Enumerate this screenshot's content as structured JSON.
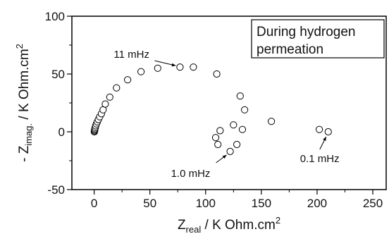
{
  "chart_data": {
    "type": "scatter",
    "xlabel": {
      "prefix": "Z",
      "sub": "real",
      "suffix": " / K Ohm.cm",
      "sup": "2"
    },
    "ylabel": {
      "prefix": "- Z",
      "sub": "imag.",
      "suffix": " / K Ohm.cm",
      "sup": "2"
    },
    "xlim": [
      -20,
      262
    ],
    "ylim": [
      -50,
      100
    ],
    "xticks": [
      0,
      50,
      100,
      150,
      200,
      250
    ],
    "yticks": [
      -50,
      0,
      50,
      100
    ],
    "legend": {
      "lines": [
        "During hydrogen",
        "permeation"
      ],
      "placement": "top-right"
    },
    "annotations": [
      {
        "text": "11 mHz",
        "x": 77,
        "y": 56
      },
      {
        "text": "1.0 mHz",
        "x": 122,
        "y": -17
      },
      {
        "text": "0.1 mHz",
        "x": 210,
        "y": 0
      }
    ],
    "points": [
      [
        0.2,
        0.0
      ],
      [
        0.3,
        0.8
      ],
      [
        0.5,
        1.6
      ],
      [
        0.7,
        2.6
      ],
      [
        1.0,
        3.8
      ],
      [
        1.4,
        5.2
      ],
      [
        2.0,
        6.8
      ],
      [
        2.8,
        8.6
      ],
      [
        3.8,
        10.6
      ],
      [
        5.0,
        13.0
      ],
      [
        6.5,
        15.6
      ],
      [
        8.0,
        19.0
      ],
      [
        10.0,
        24.0
      ],
      [
        14.0,
        30.0
      ],
      [
        20.0,
        38.0
      ],
      [
        30.0,
        45.0
      ],
      [
        42.0,
        52.0
      ],
      [
        57.0,
        55.0
      ],
      [
        77.0,
        56.0
      ],
      [
        89.0,
        56.0
      ],
      [
        110.0,
        50.0
      ],
      [
        131.0,
        31.0
      ],
      [
        135.0,
        19.0
      ],
      [
        159.0,
        9.0
      ],
      [
        125.0,
        6.0
      ],
      [
        113.0,
        1.0
      ],
      [
        133.0,
        2.0
      ],
      [
        109.0,
        -5.0
      ],
      [
        111.0,
        -11.0
      ],
      [
        128.0,
        -11.0
      ],
      [
        122.0,
        -17.0
      ],
      [
        202.0,
        2.0
      ],
      [
        210.0,
        0.0
      ]
    ]
  }
}
